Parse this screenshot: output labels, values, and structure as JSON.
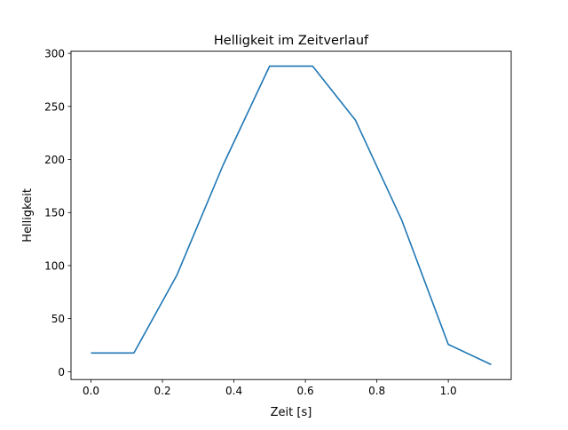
{
  "chart_data": {
    "type": "line",
    "title": "Helligkeit im Zeitverlauf",
    "xlabel": "Zeit [s]",
    "ylabel": "Helligkeit",
    "xlim": [
      -0.056,
      1.176
    ],
    "ylim": [
      -7.4,
      302.1
    ],
    "xticks": [
      0.0,
      0.2,
      0.4,
      0.6,
      0.8,
      1.0
    ],
    "xtick_labels": [
      "0.0",
      "0.2",
      "0.4",
      "0.6",
      "0.8",
      "1.0"
    ],
    "yticks": [
      0,
      50,
      100,
      150,
      200,
      250,
      300
    ],
    "ytick_labels": [
      "0",
      "50",
      "100",
      "150",
      "200",
      "250",
      "300"
    ],
    "grid": false,
    "series": [
      {
        "name": "Helligkeit",
        "color": "#1f77b4",
        "x": [
          0.0,
          0.12,
          0.24,
          0.37,
          0.5,
          0.62,
          0.74,
          0.87,
          1.0,
          1.12
        ],
        "y": [
          17.6,
          17.6,
          90.8,
          195,
          288,
          288,
          237,
          142.6,
          25.8,
          6.7
        ]
      }
    ]
  }
}
